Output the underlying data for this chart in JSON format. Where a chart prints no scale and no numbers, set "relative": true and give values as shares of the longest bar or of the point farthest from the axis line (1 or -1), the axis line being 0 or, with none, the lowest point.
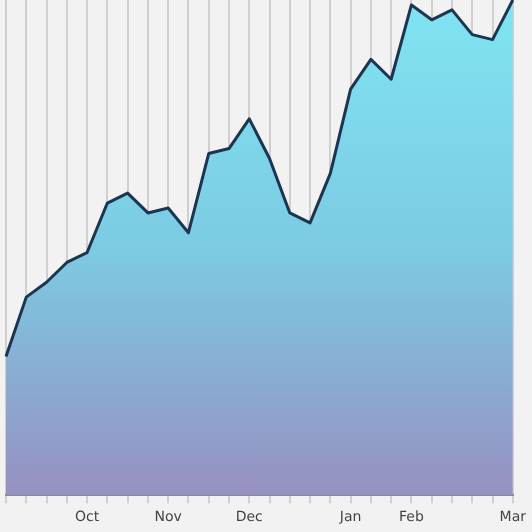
{
  "chart_data": {
    "type": "area",
    "relative": true,
    "categories": [
      null,
      null,
      null,
      null,
      "Oct",
      null,
      null,
      null,
      "Nov",
      null,
      null,
      null,
      "Dec",
      null,
      null,
      null,
      null,
      "Jan",
      null,
      null,
      "Feb",
      null,
      null,
      null,
      null,
      "Mar"
    ],
    "series": [
      {
        "color": "#7ccbe3",
        "values": [
          0.28,
          0.4,
          0.43,
          0.47,
          0.49,
          0.59,
          0.61,
          0.57,
          0.58,
          0.53,
          0.69,
          0.7,
          0.76,
          0.68,
          0.57,
          0.55,
          0.65,
          0.82,
          0.88,
          0.84,
          0.99,
          0.96,
          0.98,
          0.93,
          0.92,
          1
        ]
      }
    ],
    "grid": "x",
    "legend": false
  }
}
